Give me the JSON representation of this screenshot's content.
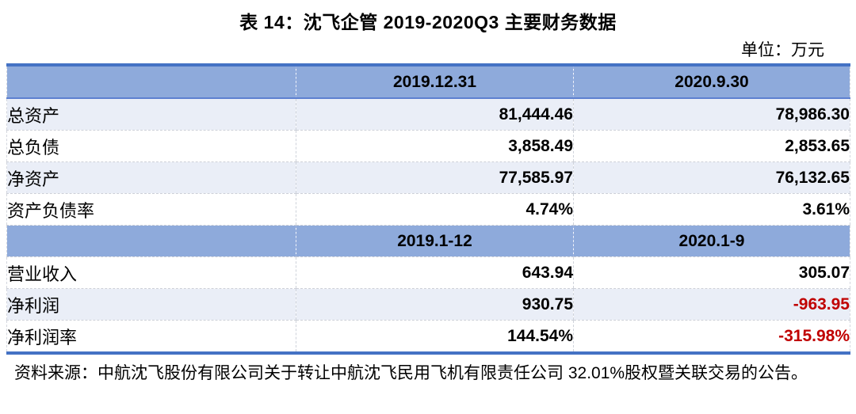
{
  "title": "表 14：沈飞企管 2019-2020Q3 主要财务数据",
  "unit_label": "单位：万元",
  "colors": {
    "accent_border": "#4472C4",
    "header_fill": "#8EAADB",
    "alt_row_fill": "#EAEEF7",
    "negative_text": "#C00000"
  },
  "table": {
    "sections": [
      {
        "header": [
          "",
          "2019.12.31",
          "2020.9.30"
        ],
        "rows": [
          {
            "label": "总资产",
            "values": [
              "81,444.46",
              "78,986.30"
            ]
          },
          {
            "label": "总负债",
            "values": [
              "3,858.49",
              "2,853.65"
            ]
          },
          {
            "label": "净资产",
            "values": [
              "77,585.97",
              "76,132.65"
            ]
          },
          {
            "label": "资产负债率",
            "values": [
              "4.74%",
              "3.61%"
            ]
          }
        ]
      },
      {
        "header": [
          "",
          "2019.1-12",
          "2020.1-9"
        ],
        "rows": [
          {
            "label": "营业收入",
            "values": [
              "643.94",
              "305.07"
            ]
          },
          {
            "label": "净利润",
            "values": [
              "930.75",
              "-963.95"
            ]
          },
          {
            "label": "净利润率",
            "values": [
              "144.54%",
              "-315.98%"
            ]
          }
        ]
      }
    ]
  },
  "source_note": "资料来源：中航沈飞股份有限公司关于转让中航沈飞民用飞机有限责任公司 32.01%股权暨关联交易的公告。"
}
